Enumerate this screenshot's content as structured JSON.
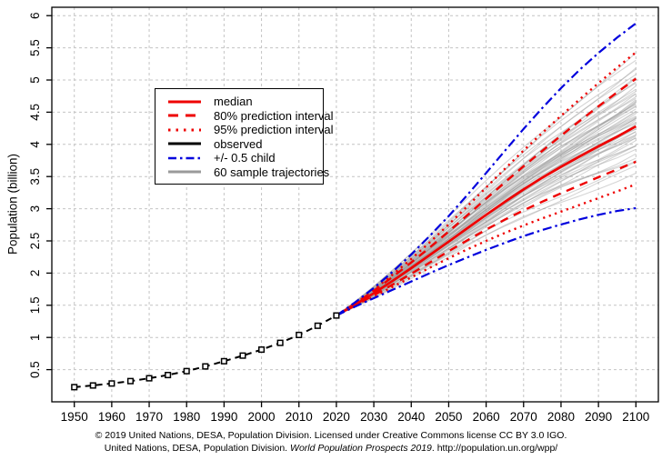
{
  "colors": {
    "red": "#ee0000",
    "blue": "#0000dd",
    "black": "#000000",
    "gray": "#9a9a9a",
    "grid": "#c4c4c4"
  },
  "y_axis": {
    "title": "Population (billion)",
    "tick_labels": [
      "0.5",
      "1",
      "1.5",
      "2",
      "2.5",
      "3",
      "3.5",
      "4",
      "4.5",
      "5",
      "5.5",
      "6"
    ],
    "tick_values": [
      0.5,
      1,
      1.5,
      2,
      2.5,
      3,
      3.5,
      4,
      4.5,
      5,
      5.5,
      6
    ]
  },
  "x_axis": {
    "tick_labels": [
      "1950",
      "1960",
      "1970",
      "1980",
      "1990",
      "2000",
      "2010",
      "2020",
      "2030",
      "2040",
      "2050",
      "2060",
      "2070",
      "2080",
      "2090",
      "2100"
    ],
    "tick_values": [
      1950,
      1960,
      1970,
      1980,
      1990,
      2000,
      2010,
      2020,
      2030,
      2040,
      2050,
      2060,
      2070,
      2080,
      2090,
      2100
    ]
  },
  "legend": {
    "items": [
      {
        "label": "median",
        "swatch": "median"
      },
      {
        "label": "80% prediction interval",
        "swatch": "pi80"
      },
      {
        "label": "95% prediction interval",
        "swatch": "pi95"
      },
      {
        "label": "observed",
        "swatch": "observed"
      },
      {
        "label": "+/- 0.5 child",
        "swatch": "halfchild"
      },
      {
        "label": "60 sample trajectories",
        "swatch": "trajectory"
      }
    ]
  },
  "caption": {
    "line1": "© 2019 United Nations, DESA, Population Division. Licensed under Creative Commons license CC BY 3.0 IGO.",
    "line2_prefix": "United Nations, DESA, Population Division. ",
    "line2_italic": "World Population Prospects 2019",
    "line2_suffix": ". http://population.un.org/wpp/"
  },
  "chart_data": {
    "type": "line",
    "title": "",
    "xlabel": "",
    "ylabel": "Population (billion)",
    "xlim": [
      1944,
      2106
    ],
    "ylim": [
      0,
      6.13
    ],
    "grid": true,
    "legend_position": "upper-left-inside",
    "observed": {
      "years": [
        1950,
        1955,
        1960,
        1965,
        1970,
        1975,
        1980,
        1985,
        1990,
        1995,
        2000,
        2005,
        2010,
        2015,
        2020
      ],
      "values": [
        0.228,
        0.254,
        0.285,
        0.322,
        0.366,
        0.416,
        0.477,
        0.55,
        0.631,
        0.718,
        0.811,
        0.916,
        1.039,
        1.182,
        1.341
      ]
    },
    "projection_years": [
      2020,
      2025,
      2030,
      2035,
      2040,
      2045,
      2050,
      2055,
      2060,
      2065,
      2070,
      2075,
      2080,
      2085,
      2090,
      2095,
      2100
    ],
    "series": [
      {
        "name": "median",
        "values": [
          1.341,
          1.509,
          1.688,
          1.878,
          2.077,
          2.282,
          2.489,
          2.698,
          2.905,
          3.107,
          3.3,
          3.483,
          3.653,
          3.812,
          3.97,
          4.12,
          4.28
        ]
      },
      {
        "name": "pi80_upper",
        "values": [
          1.341,
          1.525,
          1.725,
          1.94,
          2.165,
          2.4,
          2.645,
          2.9,
          3.155,
          3.41,
          3.66,
          3.9,
          4.135,
          4.365,
          4.59,
          4.81,
          5.02
        ]
      },
      {
        "name": "pi80_lower",
        "values": [
          1.341,
          1.495,
          1.655,
          1.82,
          1.99,
          2.165,
          2.34,
          2.51,
          2.675,
          2.83,
          2.975,
          3.11,
          3.24,
          3.365,
          3.49,
          3.61,
          3.73
        ]
      },
      {
        "name": "pi95_upper",
        "values": [
          1.341,
          1.535,
          1.745,
          1.975,
          2.22,
          2.48,
          2.755,
          3.04,
          3.33,
          3.62,
          3.905,
          4.18,
          4.445,
          4.7,
          4.95,
          5.195,
          5.43
        ]
      },
      {
        "name": "pi95_lower",
        "values": [
          1.341,
          1.485,
          1.635,
          1.785,
          1.935,
          2.085,
          2.23,
          2.37,
          2.5,
          2.625,
          2.74,
          2.85,
          2.955,
          3.06,
          3.165,
          3.27,
          3.38
        ]
      },
      {
        "name": "halfchild_upper",
        "values": [
          1.341,
          1.545,
          1.77,
          2.02,
          2.29,
          2.58,
          2.885,
          3.215,
          3.555,
          3.9,
          4.24,
          4.565,
          4.875,
          5.16,
          5.42,
          5.66,
          5.88
        ]
      },
      {
        "name": "halfchild_lower",
        "values": [
          1.341,
          1.48,
          1.61,
          1.74,
          1.87,
          2.0,
          2.125,
          2.245,
          2.36,
          2.47,
          2.575,
          2.67,
          2.755,
          2.835,
          2.905,
          2.965,
          3.01
        ]
      }
    ],
    "sample_trajectories": {
      "count": 60,
      "endpoints_2100": [
        4.42,
        4.18,
        4.65,
        3.95,
        4.88,
        4.3,
        4.55,
        3.78,
        5.05,
        4.47,
        4.12,
        4.72,
        4.25,
        4.95,
        3.85,
        4.38,
        4.6,
        4.05,
        5.18,
        4.5,
        4.2,
        4.8,
        3.92,
        4.35,
        4.68,
        4.15,
        5.3,
        4.45,
        3.7,
        4.58,
        4.28,
        4.9,
        4.08,
        4.75,
        4.4,
        3.6,
        5.1,
        4.52,
        4.22,
        4.85,
        3.98,
        4.62,
        4.32,
        5.22,
        4.1,
        4.7,
        4.48,
        3.88,
        5.0,
        4.26,
        4.56,
        4.02,
        4.78,
        4.36,
        5.4,
        4.16,
        4.66,
        3.55,
        4.92,
        4.44
      ]
    }
  }
}
